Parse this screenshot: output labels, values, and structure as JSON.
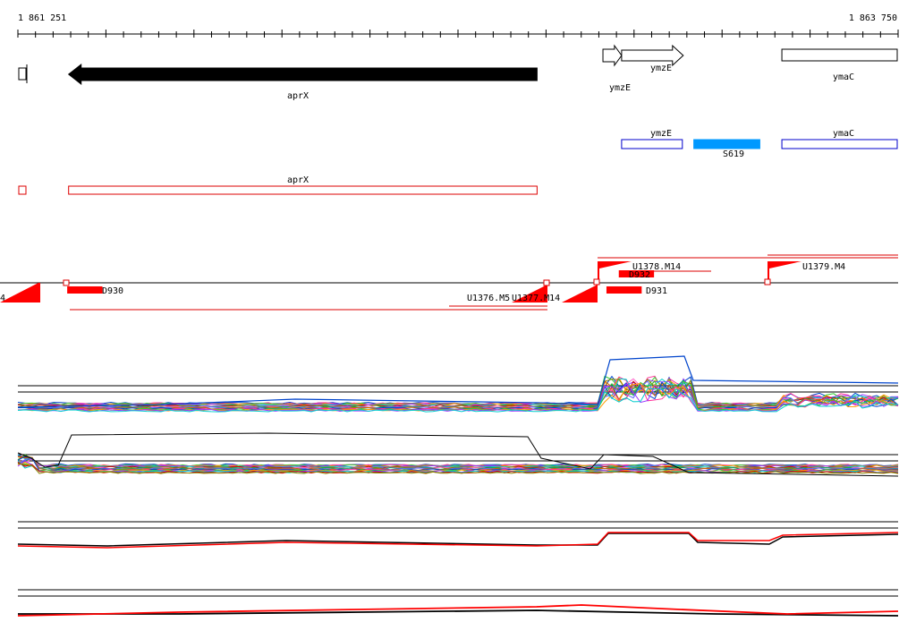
{
  "coords": {
    "start": "1 861 251",
    "end": "1 863 750",
    "start_bp": 1861251,
    "end_bp": 1863750
  },
  "genes": [
    {
      "label": "aprX",
      "start_bp": 1861395,
      "end_bp": 1862725,
      "strand": "-"
    },
    {
      "label": "ymzE",
      "start_bp": 1862912,
      "end_bp": 1862965,
      "strand": "+"
    },
    {
      "label": "ymzE",
      "start_bp": 1862965,
      "end_bp": 1863140,
      "strand": "+"
    },
    {
      "label": "ymaC",
      "start_bp": 1863420,
      "end_bp": 1863750,
      "strand": "+"
    }
  ],
  "annotations": {
    "blue": [
      {
        "label": "ymzE",
        "start_bp": 1862965,
        "end_bp": 1863140
      },
      {
        "label": "S619",
        "start_bp": 1863170,
        "end_bp": 1863360,
        "filled": true
      },
      {
        "label": "ymaC",
        "start_bp": 1863420,
        "end_bp": 1863750
      }
    ],
    "red": [
      {
        "label": "",
        "start_bp": 1861251,
        "end_bp": 1861275
      },
      {
        "label": "aprX",
        "start_bp": 1861395,
        "end_bp": 1862725
      }
    ]
  },
  "features": {
    "labels": [
      "U1378.M14",
      "U1379.M4",
      "D932",
      "D930",
      "D931",
      "U1376.M5",
      "U1377.M14",
      "4"
    ],
    "blocks": [
      {
        "label": "D930",
        "start_bp": 1861391,
        "end_bp": 1861491,
        "row": "below"
      },
      {
        "label": "D932",
        "start_bp": 1862957,
        "end_bp": 1863057,
        "row": "above"
      },
      {
        "label": "D931",
        "start_bp": 1862922,
        "end_bp": 1863022,
        "row": "below"
      }
    ]
  },
  "profile_colors": [
    "#0044cc",
    "#ff3399",
    "#33cc33",
    "#ff9900",
    "#9933ff",
    "#00cccc",
    "#cc0000",
    "#888800",
    "#ff66cc",
    "#00aa66",
    "#6666ff",
    "#cc6600"
  ],
  "summary_colors": [
    "#ff0000",
    "#000000"
  ]
}
